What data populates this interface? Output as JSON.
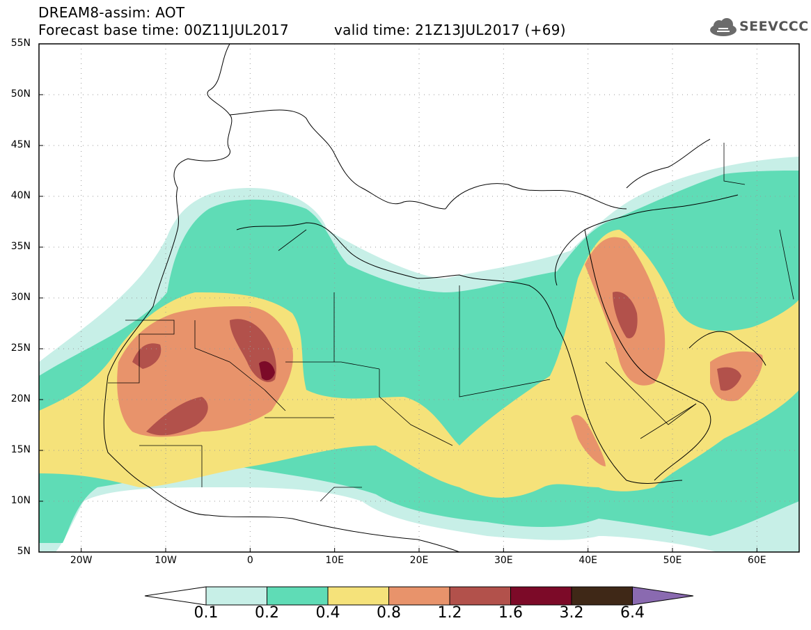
{
  "header": {
    "title_line1": "DREAM8-assim: AOT",
    "title_line2": "Forecast base time: 00Z11JUL2017",
    "valid_time": "valid time: 21Z13JUL2017 (+69)",
    "logo_text": "SEEVCCC"
  },
  "axes": {
    "lat_labels": [
      "55N",
      "50N",
      "45N",
      "40N",
      "35N",
      "30N",
      "25N",
      "20N",
      "15N",
      "10N",
      "5N"
    ],
    "lon_labels": [
      "20W",
      "10W",
      "0",
      "10E",
      "20E",
      "30E",
      "40E",
      "50E",
      "60E"
    ],
    "lat_range": [
      5,
      55
    ],
    "lon_range": [
      -25,
      65
    ]
  },
  "colorbar": {
    "labels": [
      "0.1",
      "0.2",
      "0.4",
      "0.8",
      "1.2",
      "1.6",
      "3.2",
      "6.4"
    ],
    "colors": [
      "#ffffff",
      "#c7efe7",
      "#5fdcb6",
      "#f5e27a",
      "#e8936b",
      "#b2514b",
      "#7c0a28",
      "#3f2817",
      "#8a6ab0"
    ]
  },
  "fields": {
    "colors": {
      "c02": "#c7efe7",
      "c04": "#5fdcb6",
      "c08": "#f5e27a",
      "c12": "#e8936b",
      "c16": "#b2514b",
      "c32": "#7c0a28"
    }
  }
}
